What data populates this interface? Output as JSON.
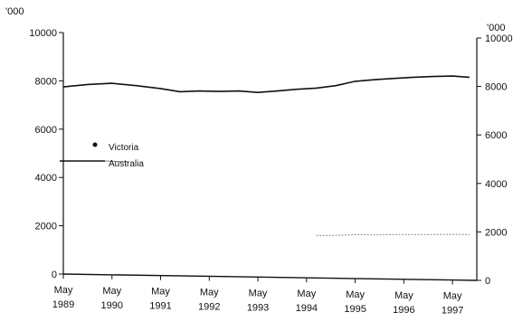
{
  "chart_data": {
    "type": "line",
    "title": "",
    "xlabel": "",
    "ylabel_left_unit": "'000",
    "ylabel_right_unit": "'000",
    "x_ticks": [
      {
        "month": "May",
        "year": "1989"
      },
      {
        "month": "May",
        "year": "1990"
      },
      {
        "month": "May",
        "year": "1991"
      },
      {
        "month": "May",
        "year": "1992"
      },
      {
        "month": "May",
        "year": "1993"
      },
      {
        "month": "May",
        "year": "1994"
      },
      {
        "month": "May",
        "year": "1995"
      },
      {
        "month": "May",
        "year": "1996"
      },
      {
        "month": "May",
        "year": "1997"
      }
    ],
    "xlim": [
      1989.0,
      1997.5
    ],
    "ylim_left": [
      0,
      10000
    ],
    "ylim_right": [
      0,
      10000
    ],
    "y_ticks_left": [
      "0",
      "2000",
      "4000",
      "6000",
      "8000",
      "10000"
    ],
    "y_ticks_right": [
      "0",
      "2000",
      "4000",
      "6000",
      "8000",
      "10000"
    ],
    "grid": false,
    "legend_position": "middle-left",
    "series": [
      {
        "name": "Victoria",
        "axis": "right",
        "style": "dotted",
        "color": "#9a9a9a",
        "points": [
          [
            1994.2,
            1850
          ],
          [
            1994.6,
            1860
          ],
          [
            1995.0,
            1890
          ],
          [
            1995.4,
            1880
          ],
          [
            1995.8,
            1890
          ],
          [
            1996.2,
            1890
          ],
          [
            1996.6,
            1890
          ],
          [
            1997.0,
            1900
          ],
          [
            1997.35,
            1890
          ]
        ]
      },
      {
        "name": "Australia",
        "axis": "left",
        "style": "solid",
        "color": "#111111",
        "points": [
          [
            1989.0,
            7750
          ],
          [
            1989.5,
            7850
          ],
          [
            1990.0,
            7900
          ],
          [
            1990.5,
            7800
          ],
          [
            1991.0,
            7680
          ],
          [
            1991.4,
            7550
          ],
          [
            1991.8,
            7580
          ],
          [
            1992.2,
            7560
          ],
          [
            1992.6,
            7580
          ],
          [
            1993.0,
            7520
          ],
          [
            1993.4,
            7580
          ],
          [
            1993.8,
            7650
          ],
          [
            1994.2,
            7700
          ],
          [
            1994.6,
            7800
          ],
          [
            1995.0,
            7980
          ],
          [
            1995.4,
            8050
          ],
          [
            1995.8,
            8100
          ],
          [
            1996.2,
            8150
          ],
          [
            1996.6,
            8180
          ],
          [
            1997.0,
            8200
          ],
          [
            1997.35,
            8150
          ]
        ]
      }
    ]
  }
}
